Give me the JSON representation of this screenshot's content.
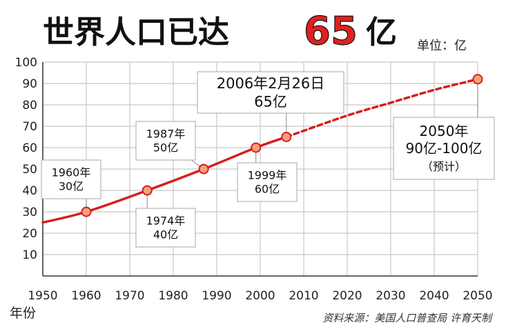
{
  "header": {
    "title_prefix": "世界人口已达",
    "title_number": "65",
    "title_suffix": "亿",
    "unit_label": "单位：亿"
  },
  "footer": {
    "year_axis_label": "年份",
    "source": "资料来源：美国人口普查局  许育天制"
  },
  "colors": {
    "title": "#111111",
    "title_number": "#e02020",
    "curve": "#d41e1e",
    "marker_fill": "#f6a07a",
    "marker_stroke": "#d41e1e",
    "grid": "#c8c8c8",
    "axis": "#333333"
  },
  "chart_data": {
    "type": "line",
    "title": "世界人口已达65亿",
    "ylabel": "单位：亿",
    "xlabel": "年份",
    "xlim": [
      1950,
      2050
    ],
    "ylim": [
      0,
      100
    ],
    "x_ticks": [
      1950,
      1960,
      1970,
      1980,
      1990,
      2000,
      2010,
      2020,
      2030,
      2040,
      2050
    ],
    "y_ticks": [
      10,
      20,
      30,
      40,
      50,
      60,
      70,
      80,
      90,
      100
    ],
    "grid": true,
    "series": [
      {
        "style": "solid",
        "x": [
          1950,
          1960,
          1974,
          1987,
          1999,
          2006
        ],
        "y": [
          25,
          30,
          40,
          50,
          60,
          65
        ]
      },
      {
        "style": "dashed",
        "x": [
          2006,
          2020,
          2030,
          2040,
          2050
        ],
        "y": [
          65,
          75,
          81,
          87,
          92
        ]
      }
    ],
    "markers": [
      {
        "x": 1960,
        "y": 30
      },
      {
        "x": 1974,
        "y": 40
      },
      {
        "x": 1987,
        "y": 50
      },
      {
        "x": 1999,
        "y": 60
      },
      {
        "x": 2006,
        "y": 65
      },
      {
        "x": 2050,
        "y": 92
      }
    ],
    "annotations": [
      {
        "name": "annotation-1960",
        "lines": [
          "1960年",
          "30亿"
        ]
      },
      {
        "name": "annotation-1974",
        "lines": [
          "1974年",
          "40亿"
        ]
      },
      {
        "name": "annotation-1987",
        "lines": [
          "1987年",
          "50亿"
        ]
      },
      {
        "name": "annotation-1999",
        "lines": [
          "1999年",
          "60亿"
        ]
      },
      {
        "name": "annotation-2006",
        "lines": [
          "2006年2月26日",
          "65亿"
        ]
      },
      {
        "name": "annotation-2050",
        "lines": [
          "2050年",
          "90亿-100亿",
          "（预计）"
        ]
      }
    ]
  }
}
